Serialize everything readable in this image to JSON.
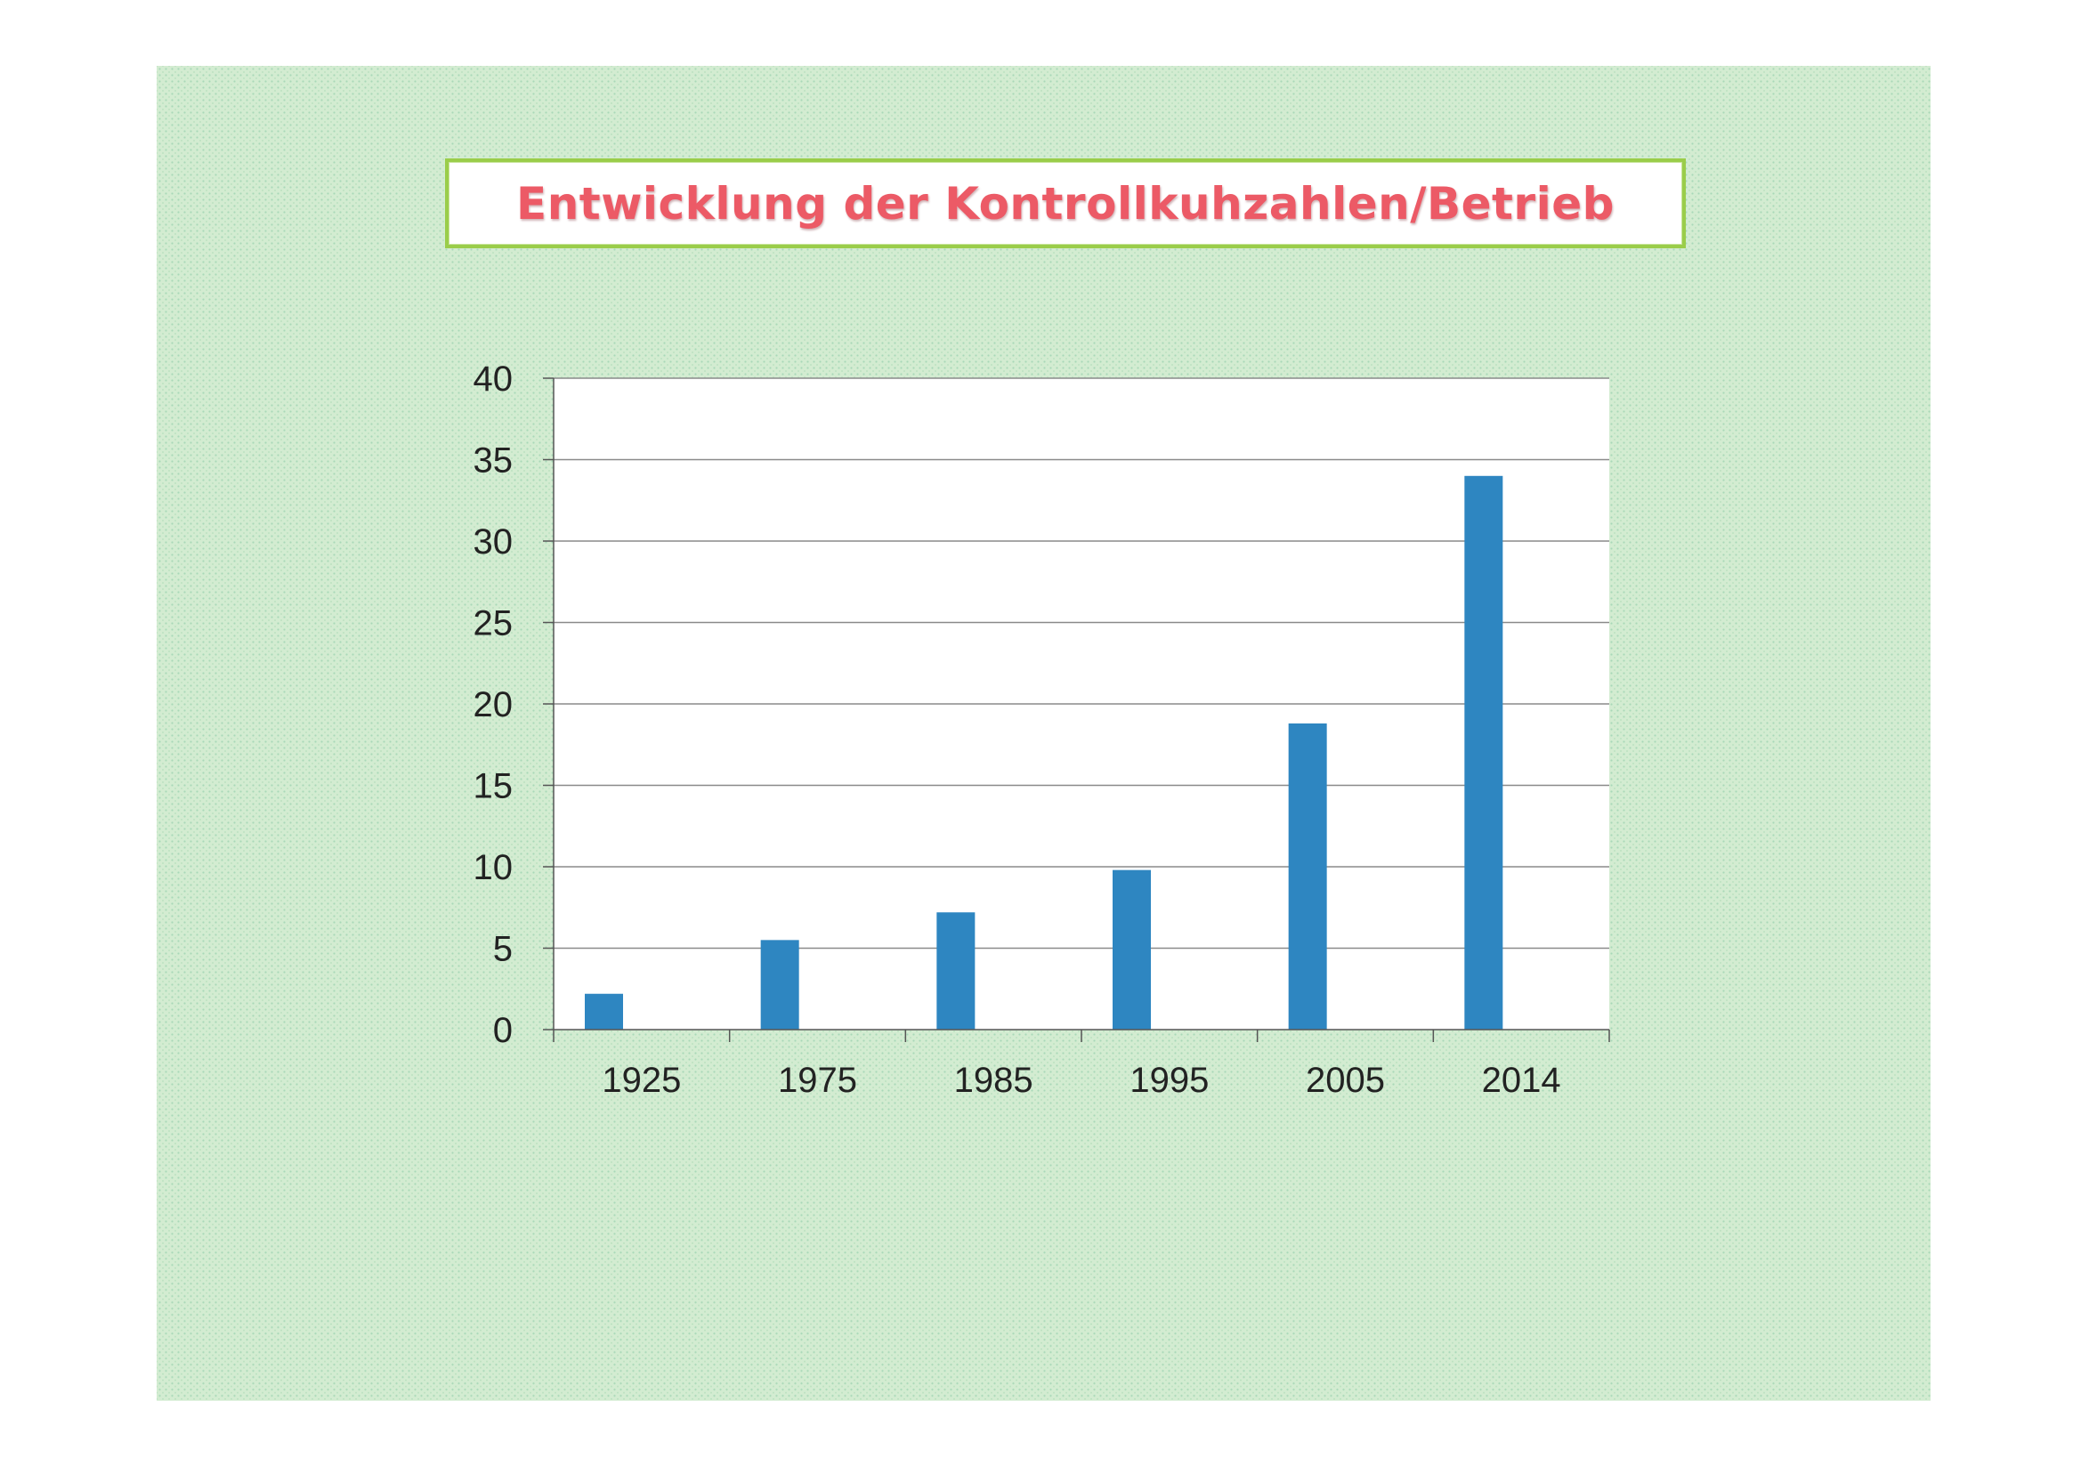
{
  "title": "Entwicklung der Kontrollkuhzahlen/Betrieb",
  "chart_data": {
    "type": "bar",
    "title": "Entwicklung der Kontrollkuhzahlen/Betrieb",
    "categories": [
      "1925",
      "1975",
      "1985",
      "1995",
      "2005",
      "2014"
    ],
    "values": [
      2.2,
      5.5,
      7.2,
      9.8,
      18.8,
      34
    ],
    "xlabel": "",
    "ylabel": "",
    "ylim": [
      0,
      40
    ],
    "yticks": [
      0,
      5,
      10,
      15,
      20,
      25,
      30,
      35,
      40
    ],
    "grid": true,
    "legend": "none",
    "bar_color": "#2e86c1"
  }
}
